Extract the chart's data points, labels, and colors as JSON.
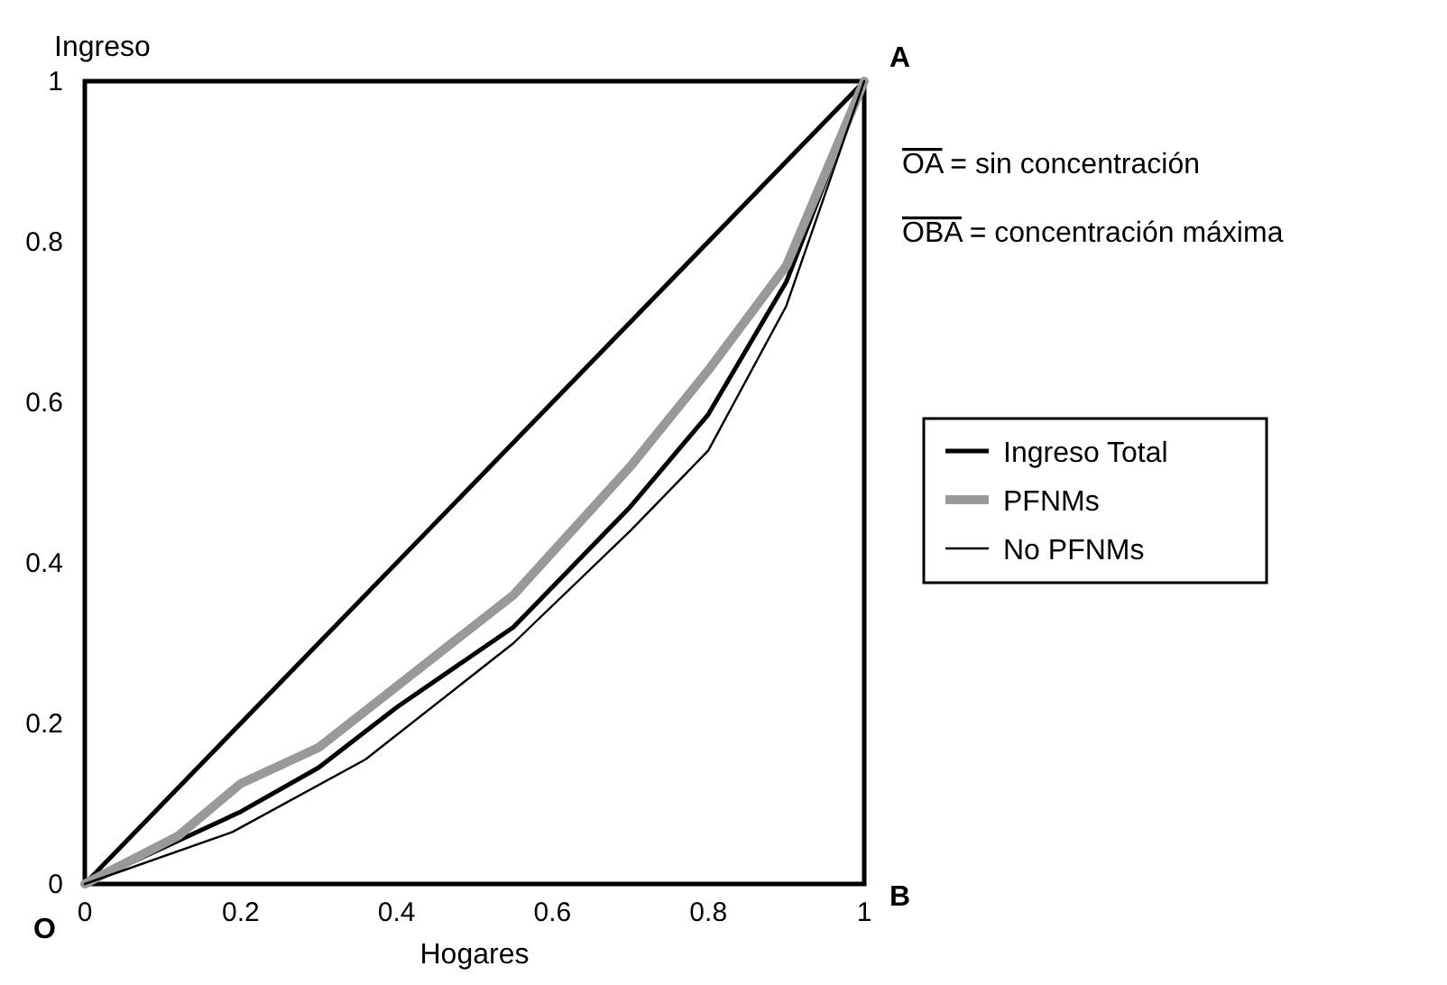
{
  "chart_data": {
    "type": "line",
    "xlabel": "Hogares",
    "ylabel": "Ingreso",
    "xlim": [
      0,
      1
    ],
    "ylim": [
      0,
      1
    ],
    "xticks": [
      0,
      0.2,
      0.4,
      0.6,
      0.8,
      1
    ],
    "yticks": [
      0,
      0.2,
      0.4,
      0.6,
      0.8,
      1
    ],
    "grid": false,
    "legend": "right",
    "marker": "none",
    "line_style": "solid",
    "series": [
      {
        "color": "#000000",
        "x": [
          0,
          1
        ],
        "values": [
          0,
          1
        ]
      },
      {
        "name": "Ingreso Total",
        "color": "#000000",
        "x": [
          0,
          0.1,
          0.2,
          0.3,
          0.4,
          0.55,
          0.7,
          0.8,
          0.9,
          1
        ],
        "values": [
          0,
          0.045,
          0.09,
          0.145,
          0.22,
          0.32,
          0.47,
          0.585,
          0.75,
          1
        ]
      },
      {
        "name": "PFNMs",
        "color": "#999999",
        "x": [
          0,
          0.12,
          0.2,
          0.3,
          0.55,
          0.7,
          0.8,
          0.9,
          1
        ],
        "values": [
          0,
          0.06,
          0.125,
          0.17,
          0.36,
          0.52,
          0.64,
          0.77,
          1
        ]
      },
      {
        "name": "No PFNMs",
        "color": "#000000",
        "x": [
          0,
          0.19,
          0.36,
          0.55,
          0.7,
          0.8,
          0.9,
          1
        ],
        "values": [
          0,
          0.065,
          0.155,
          0.3,
          0.44,
          0.54,
          0.72,
          1
        ]
      }
    ],
    "annotations": [
      "O",
      "B",
      "A",
      "OA = sin concentración",
      "OBA = concentración máxima"
    ]
  }
}
